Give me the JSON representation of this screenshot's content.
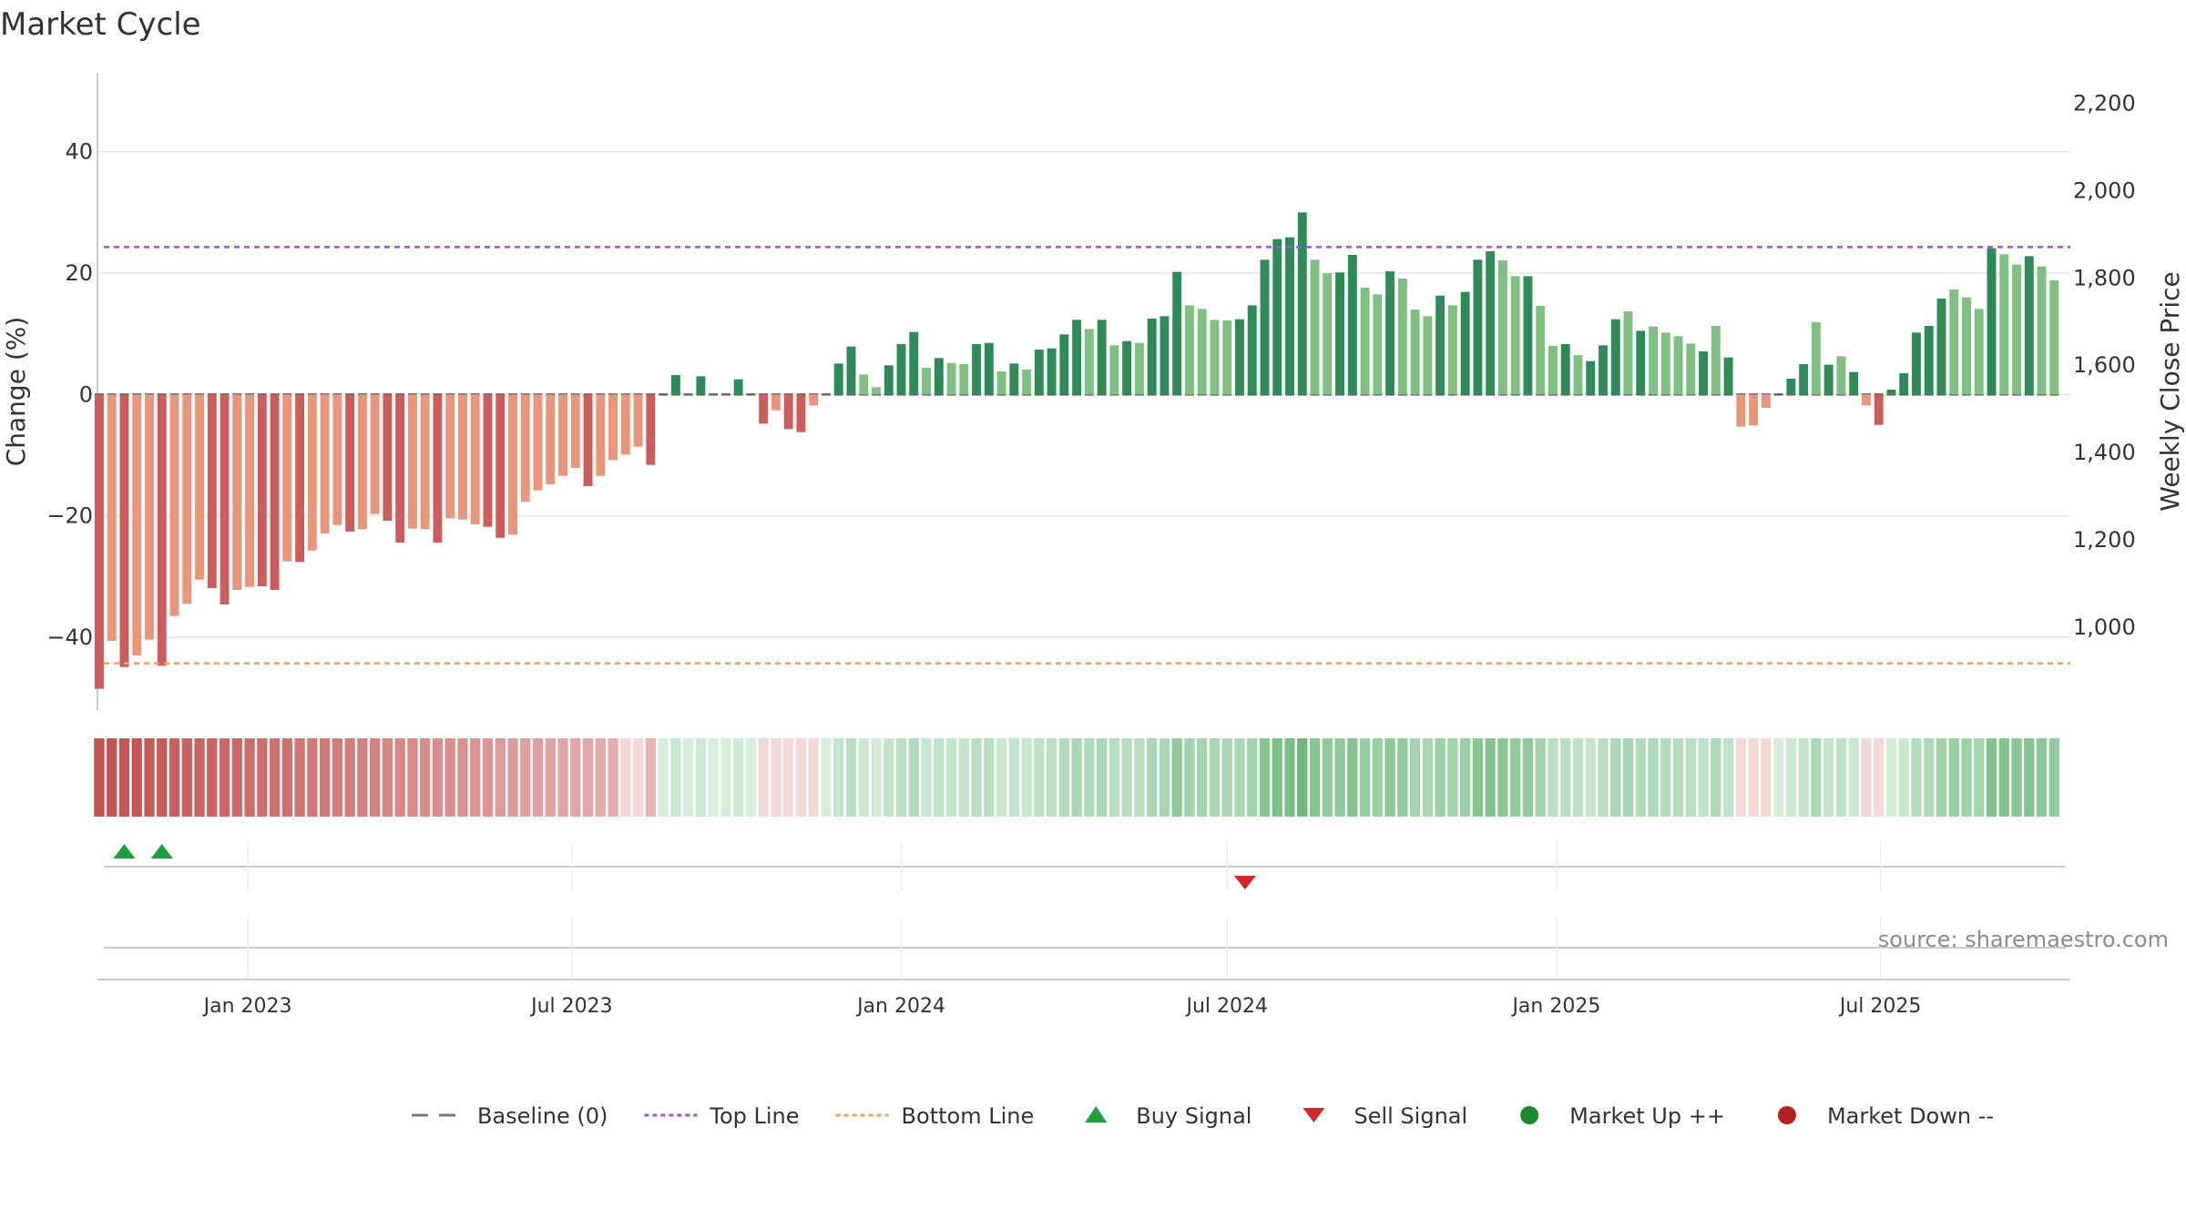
{
  "chart_data": {
    "type": "bar",
    "title": "Market Cycle",
    "source": "source: sharemaestro.com",
    "left_axis": {
      "label": "Change (%)",
      "range": [
        -52,
        53
      ],
      "ticks": [
        40,
        20,
        0,
        -20,
        -40
      ],
      "tick_labels": [
        "40",
        "20",
        "0",
        "−20",
        "−40"
      ]
    },
    "right_axis": {
      "label": "Weekly Close Price",
      "range": [
        810,
        2270
      ],
      "ticks": [
        2200,
        2000,
        1800,
        1600,
        1400,
        1200,
        1000
      ],
      "tick_labels": [
        "2,200",
        "2,000",
        "1,800",
        "1,600",
        "1,400",
        "1,200",
        "1,000"
      ]
    },
    "x_axis": {
      "start": "2022-10-09",
      "end": "2025-10-15",
      "ticks": [
        "2023-01-01",
        "2023-07-01",
        "2024-01-01",
        "2024-07-01",
        "2025-01-01",
        "2025-07-01"
      ],
      "tick_labels": [
        "Jan 2023",
        "Jul 2023",
        "Jan 2024",
        "Jul 2024",
        "Jan 2025",
        "Jul 2025"
      ]
    },
    "week_start": "2022-10-10",
    "week_step_days": 7,
    "top_line": 24.3,
    "bottom_line": -44.3,
    "values": [
      -48.5,
      -40.6,
      -44.9,
      -43,
      -40.4,
      -44.7,
      -36.5,
      -34.5,
      -30.5,
      -31.9,
      -34.6,
      -32.2,
      -31.7,
      -31.6,
      -32.2,
      -27.5,
      -27.6,
      -25.7,
      -22.9,
      -21.5,
      -22.6,
      -22.2,
      -19.7,
      -20.8,
      -24.4,
      -22.1,
      -22.2,
      -24.4,
      -20.4,
      -20.6,
      -21.4,
      -21.8,
      -23.6,
      -23.1,
      -17.7,
      -15.8,
      -14.8,
      -13.4,
      -12.1,
      -15.1,
      -13.4,
      -10.8,
      -9.9,
      -8.6,
      -11.6,
      0,
      3.2,
      0,
      3,
      0,
      0,
      2.5,
      0,
      -4.8,
      -2.6,
      -5.7,
      -6.2,
      -1.8,
      0,
      5.1,
      7.9,
      3.3,
      1.2,
      4.8,
      8.3,
      10.3,
      4.4,
      6,
      5.2,
      5,
      8.3,
      8.5,
      3.8,
      5.1,
      4.1,
      7.4,
      7.6,
      9.9,
      12.3,
      10.8,
      12.3,
      8.1,
      8.8,
      8.5,
      12.5,
      12.9,
      20.2,
      14.7,
      14.1,
      12.3,
      12.2,
      12.4,
      14.7,
      22.2,
      25.6,
      25.9,
      30,
      22.2,
      20,
      20.1,
      23,
      17.6,
      16.5,
      20.3,
      19.1,
      14,
      12.9,
      16.3,
      14.7,
      16.9,
      22.2,
      23.6,
      22.1,
      19.5,
      19.5,
      14.6,
      8,
      8.3,
      6.5,
      5.5,
      8.1,
      12.4,
      13.7,
      10.5,
      11.2,
      10.2,
      9.6,
      8.4,
      7.1,
      11.3,
      6.1,
      -5.3,
      -5.1,
      -2.2,
      0,
      2.6,
      5,
      11.9,
      4.9,
      6.3,
      3.7,
      -1.8,
      -5,
      0.8,
      3.5,
      10.2,
      11.3,
      15.8,
      17.3,
      16,
      14.1,
      24.1,
      23.1,
      21.4,
      22.8,
      21.1,
      18.8
    ],
    "bar_shades": [
      "dark",
      "light",
      "dark",
      "light",
      "light",
      "dark",
      "light",
      "light",
      "light",
      "dark",
      "dark",
      "light",
      "light",
      "dark",
      "dark",
      "light",
      "dark",
      "light",
      "light",
      "light",
      "dark",
      "light",
      "light",
      "dark",
      "dark",
      "light",
      "light",
      "dark",
      "light",
      "light",
      "light",
      "dark",
      "dark",
      "light",
      "light",
      "light",
      "light",
      "light",
      "light",
      "dark",
      "light",
      "light",
      "light",
      "light",
      "dark",
      "light",
      "dark",
      "light",
      "dark",
      "light",
      "light",
      "dark",
      "light",
      "dark",
      "light",
      "dark",
      "dark",
      "light",
      "light",
      "dark",
      "dark",
      "light",
      "light",
      "dark",
      "dark",
      "dark",
      "light",
      "dark",
      "light",
      "light",
      "dark",
      "dark",
      "light",
      "dark",
      "light",
      "dark",
      "dark",
      "dark",
      "dark",
      "light",
      "dark",
      "light",
      "dark",
      "light",
      "dark",
      "dark",
      "dark",
      "light",
      "light",
      "light",
      "light",
      "dark",
      "dark",
      "dark",
      "dark",
      "dark",
      "dark",
      "light",
      "light",
      "dark",
      "dark",
      "light",
      "light",
      "dark",
      "light",
      "light",
      "light",
      "dark",
      "light",
      "dark",
      "dark",
      "dark",
      "light",
      "light",
      "dark",
      "light",
      "light",
      "dark",
      "light",
      "dark",
      "dark",
      "dark",
      "light",
      "dark",
      "light",
      "light",
      "light",
      "light",
      "dark",
      "light",
      "dark",
      "light",
      "light",
      "light",
      "dark",
      "dark",
      "dark",
      "light",
      "dark",
      "light",
      "dark",
      "light",
      "dark",
      "dark",
      "dark",
      "dark",
      "dark",
      "dark",
      "light",
      "light",
      "light",
      "dark",
      "light",
      "light",
      "dark",
      "light"
    ],
    "cycle_strip": [
      0.52,
      0.56,
      0.6,
      0.62,
      0.64,
      0.66,
      0.72,
      0.74,
      0.76,
      0.78,
      0.8,
      0.82,
      0.84,
      0.86,
      0.88,
      0.9,
      0.9,
      0.9,
      0.91,
      0.92,
      0.92,
      0.93,
      0.94,
      0.95,
      0.95,
      0.95,
      0.95,
      0.95,
      0.96,
      0.96,
      0.97,
      0.97,
      0.97,
      0.98,
      0.98,
      0.99,
      1,
      1,
      1,
      1,
      1,
      1,
      1,
      1,
      1,
      1,
      1,
      1,
      1,
      1,
      1,
      1,
      1,
      1,
      1,
      1,
      1,
      1,
      1,
      1,
      1,
      1,
      1,
      1,
      1,
      1,
      1,
      1,
      1,
      1,
      1,
      1,
      1,
      1,
      1,
      1,
      1,
      1,
      1,
      1,
      1,
      1,
      1,
      1,
      1,
      1,
      1,
      1,
      1,
      1,
      1,
      1,
      1,
      1,
      1,
      1,
      1,
      1,
      1,
      1,
      1,
      1,
      1,
      1,
      1,
      1,
      1,
      1,
      1,
      1,
      1,
      1,
      1,
      1,
      1,
      1,
      1,
      1,
      1,
      1,
      1,
      1,
      1,
      1,
      1,
      1,
      1,
      1,
      1,
      1,
      1,
      1,
      1,
      1,
      1,
      1,
      1,
      1,
      1,
      1,
      1,
      1,
      1,
      1,
      1,
      1,
      1,
      1,
      1,
      1,
      1,
      1,
      1,
      1,
      1,
      1,
      1,
      1,
      1,
      1,
      1,
      1,
      1,
      1
    ],
    "buy_signals": [
      "2022-10-24",
      "2022-11-14"
    ],
    "sell_signals": [
      "2024-07-11"
    ],
    "legend": [
      {
        "label": "Baseline (0)",
        "marker": "dash",
        "color": "#777777"
      },
      {
        "label": "Top Line",
        "marker": "dotted",
        "color": "#9b59d0"
      },
      {
        "label": "Bottom Line",
        "marker": "dotted",
        "color": "#f0a060"
      },
      {
        "label": "Buy Signal",
        "marker": "triangle-up",
        "color": "#1fa040"
      },
      {
        "label": "Sell Signal",
        "marker": "triangle-down",
        "color": "#d62728"
      },
      {
        "label": "Market Up ++",
        "marker": "circle",
        "color": "#1e8a2e"
      },
      {
        "label": "Market Down --",
        "marker": "circle",
        "color": "#b22222"
      }
    ],
    "colors": {
      "pos_dark": "#2e8b57",
      "pos_light": "#80c080",
      "neg_dark": "#cd5c5c",
      "neg_light": "#e9967a",
      "top_line": "#9b59d0",
      "bottom_line": "#f0a060",
      "grid": "#e6e6e6"
    }
  }
}
